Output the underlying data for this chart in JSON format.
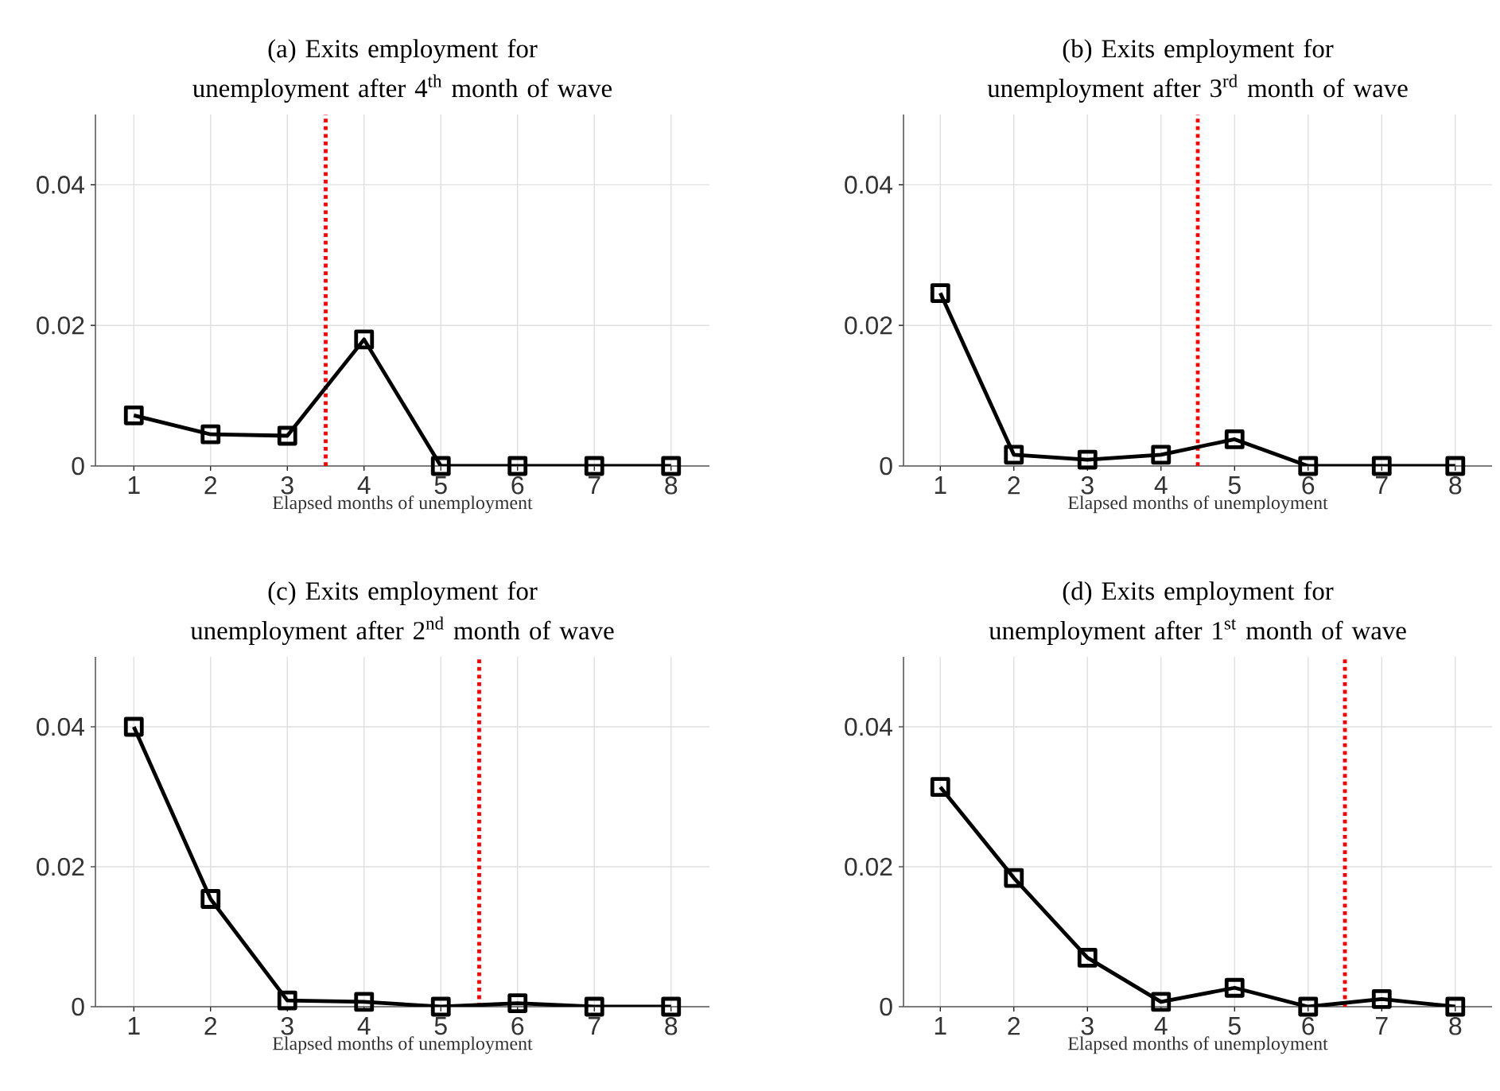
{
  "chart_data": [
    {
      "type": "line",
      "title": "(a) Exits employment for unemployment after 4$^{th}$ month of wave",
      "xlabel": "Elapsed months of unemployment",
      "x": [
        1,
        2,
        3,
        4,
        5,
        6,
        7,
        8
      ],
      "values": [
        0.0072,
        0.0045,
        0.0043,
        0.018,
        0,
        0,
        0,
        0
      ],
      "color": "#000000",
      "marker": "square",
      "line_style": "solid",
      "xlim": [
        0.5,
        8.5
      ],
      "ylim": [
        0,
        0.05
      ],
      "xticks": [
        1,
        2,
        3,
        4,
        5,
        6,
        7,
        8
      ],
      "yticks": [
        0,
        0.02,
        0.04
      ],
      "grid": true,
      "ref_lines": [
        {
          "axis": "x",
          "value": 3.5,
          "color": "#ff0000",
          "line_style": "dotted"
        }
      ]
    },
    {
      "type": "line",
      "title": "(b) Exits employment for unemployment after 3$^{rd}$ month of wave",
      "xlabel": "Elapsed months of unemployment",
      "x": [
        1,
        2,
        3,
        4,
        5,
        6,
        7,
        8
      ],
      "values": [
        0.0246,
        0.0016,
        0.0009,
        0.0016,
        0.0038,
        0,
        0,
        0
      ],
      "color": "#000000",
      "marker": "square",
      "line_style": "solid",
      "xlim": [
        0.5,
        8.5
      ],
      "ylim": [
        0,
        0.05
      ],
      "xticks": [
        1,
        2,
        3,
        4,
        5,
        6,
        7,
        8
      ],
      "yticks": [
        0,
        0.02,
        0.04
      ],
      "grid": true,
      "ref_lines": [
        {
          "axis": "x",
          "value": 4.5,
          "color": "#ff0000",
          "line_style": "dotted"
        }
      ]
    },
    {
      "type": "line",
      "title": "(c) Exits employment for unemployment after 2$^{nd}$ month of wave",
      "xlabel": "Elapsed months of unemployment",
      "x": [
        1,
        2,
        3,
        4,
        5,
        6,
        7,
        8
      ],
      "values": [
        0.04,
        0.0154,
        0.0009,
        0.0007,
        0,
        0.0005,
        0,
        0
      ],
      "color": "#000000",
      "marker": "square",
      "line_style": "solid",
      "xlim": [
        0.5,
        8.5
      ],
      "ylim": [
        0,
        0.05
      ],
      "xticks": [
        1,
        2,
        3,
        4,
        5,
        6,
        7,
        8
      ],
      "yticks": [
        0,
        0.02,
        0.04
      ],
      "grid": true,
      "ref_lines": [
        {
          "axis": "x",
          "value": 5.5,
          "color": "#ff0000",
          "line_style": "dotted"
        }
      ]
    },
    {
      "type": "line",
      "title": "(d) Exits employment for unemployment after 1$^{st}$ month of wave",
      "xlabel": "Elapsed months of unemployment",
      "x": [
        1,
        2,
        3,
        4,
        5,
        6,
        7,
        8
      ],
      "values": [
        0.0314,
        0.0184,
        0.007,
        0.0007,
        0.0027,
        0,
        0.0011,
        0
      ],
      "color": "#000000",
      "marker": "square",
      "line_style": "solid",
      "xlim": [
        0.5,
        8.5
      ],
      "ylim": [
        0,
        0.05
      ],
      "xticks": [
        1,
        2,
        3,
        4,
        5,
        6,
        7,
        8
      ],
      "yticks": [
        0,
        0.02,
        0.04
      ],
      "grid": true,
      "ref_lines": [
        {
          "axis": "x",
          "value": 6.5,
          "color": "#ff0000",
          "line_style": "dotted"
        }
      ]
    }
  ]
}
